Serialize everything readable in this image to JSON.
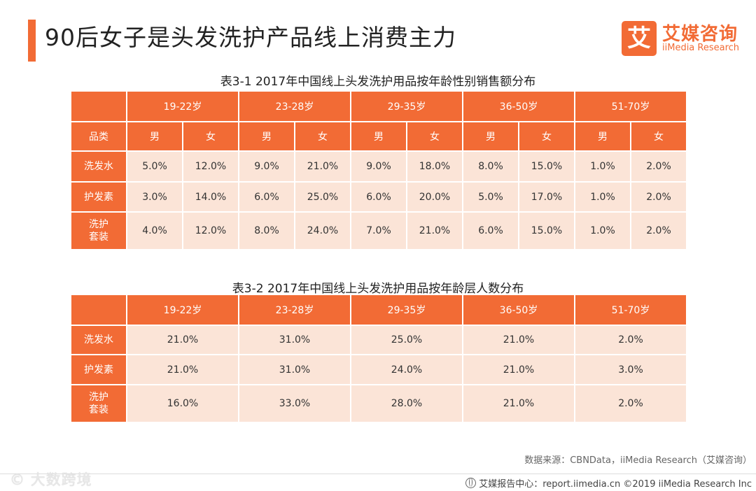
{
  "page": {
    "title": "90后女子是头发洗护产品线上消费主力",
    "logo_mark": "艾",
    "logo_cn": "艾媒咨询",
    "logo_en": "iiMedia Research",
    "source": "数据来源：CBNData，iiMedia Research（艾媒咨询）",
    "footer": "艾媒报告中心：report.iimedia.cn ©2019 iiMedia Research Inc",
    "watermark": "© 大数跨境",
    "brand_color": "#f26b35",
    "cell_color": "#fbe4d7"
  },
  "chart_data": [
    {
      "type": "table",
      "title": "表3-1 2017年中国线上头发洗护用品按年龄性别销售额分布",
      "age_groups": [
        "19-22岁",
        "23-28岁",
        "29-35岁",
        "36-50岁",
        "51-70岁"
      ],
      "row_header_label": "品类",
      "genders": [
        "男",
        "女"
      ],
      "rows": [
        {
          "category": "洗发水",
          "values": [
            "5.0%",
            "12.0%",
            "9.0%",
            "21.0%",
            "9.0%",
            "18.0%",
            "8.0%",
            "15.0%",
            "1.0%",
            "2.0%"
          ]
        },
        {
          "category": "护发素",
          "values": [
            "3.0%",
            "14.0%",
            "6.0%",
            "25.0%",
            "6.0%",
            "20.0%",
            "5.0%",
            "17.0%",
            "1.0%",
            "2.0%"
          ]
        },
        {
          "category": "洗护\n套装",
          "values": [
            "4.0%",
            "12.0%",
            "8.0%",
            "24.0%",
            "7.0%",
            "21.0%",
            "6.0%",
            "15.0%",
            "1.0%",
            "2.0%"
          ]
        }
      ]
    },
    {
      "type": "table",
      "title": "表3-2 2017年中国线上头发洗护用品按年龄层人数分布",
      "age_groups": [
        "19-22岁",
        "23-28岁",
        "29-35岁",
        "36-50岁",
        "51-70岁"
      ],
      "rows": [
        {
          "category": "洗发水",
          "values": [
            "21.0%",
            "31.0%",
            "25.0%",
            "21.0%",
            "2.0%"
          ]
        },
        {
          "category": "护发素",
          "values": [
            "21.0%",
            "31.0%",
            "24.0%",
            "21.0%",
            "3.0%"
          ]
        },
        {
          "category": "洗护\n套装",
          "values": [
            "16.0%",
            "33.0%",
            "28.0%",
            "21.0%",
            "2.0%"
          ]
        }
      ]
    }
  ]
}
